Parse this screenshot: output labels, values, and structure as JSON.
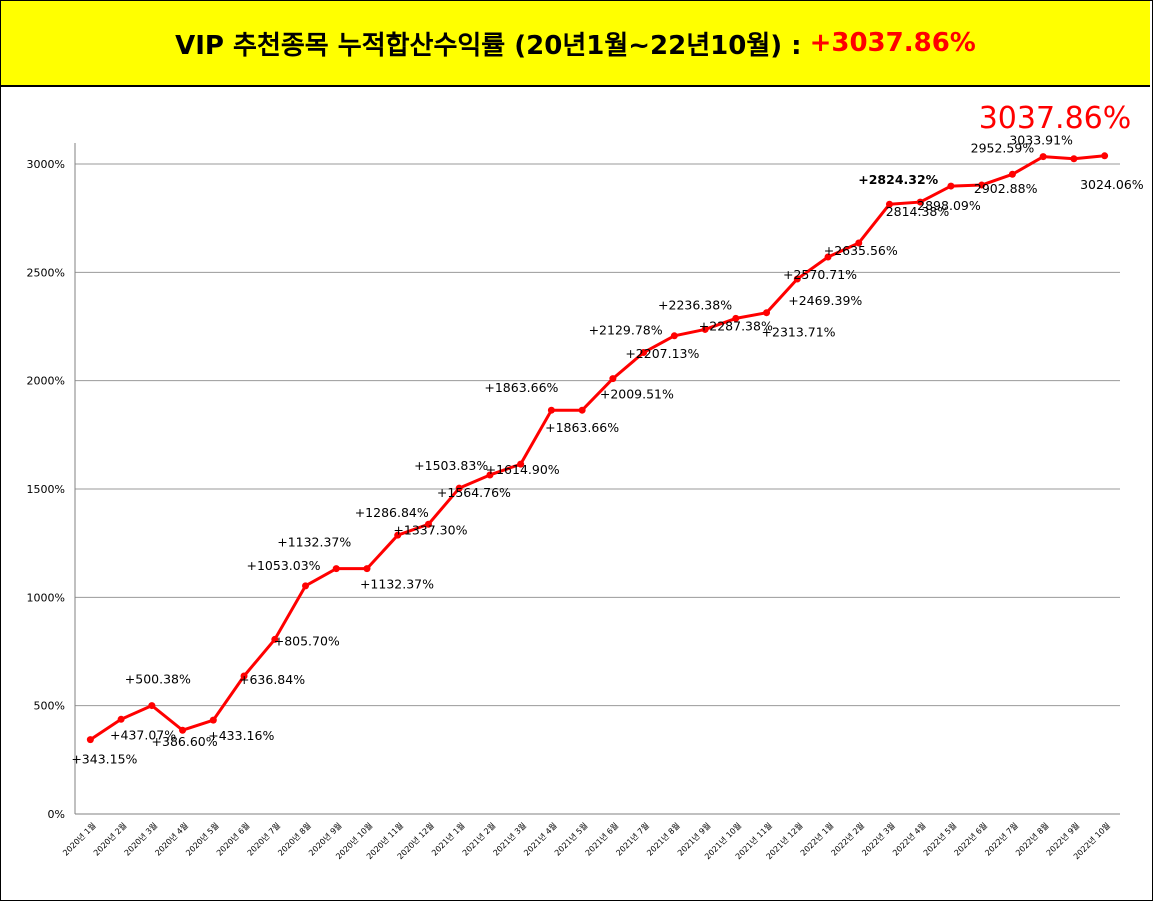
{
  "header": {
    "title": "VIP 추천종목 누적합산수익률 (20년1월~22년10월) :",
    "highlight": "+3037.86%"
  },
  "colors": {
    "banner_bg": "#ffff00",
    "line": "#ff0000",
    "highlight": "#ff0000"
  },
  "chart_data": {
    "type": "line",
    "categories": [
      "2020년 1월",
      "2020년 2월",
      "2020년 3월",
      "2020년 4월",
      "2020년 5월",
      "2020년 6월",
      "2020년 7월",
      "2020년 8월",
      "2020년 9월",
      "2020년 10월",
      "2020년 11월",
      "2020년 12월",
      "2021년 1월",
      "2021년 2월",
      "2021년 3월",
      "2021년 4월",
      "2021년 5월",
      "2021년 6월",
      "2021년 7월",
      "2021년 8월",
      "2021년 9월",
      "2021년 10월",
      "2021년 11월",
      "2021년 12월",
      "2022년 1월",
      "2022년 2월",
      "2022년 3월",
      "2022년 4월",
      "2022년 5월",
      "2022년 6월",
      "2022년 7월",
      "2022년 8월",
      "2022년 9월",
      "2022년 10월"
    ],
    "values": [
      343.15,
      437.07,
      500.38,
      386.6,
      433.16,
      636.84,
      805.7,
      1053.03,
      1132.37,
      1132.37,
      1286.84,
      1337.3,
      1503.83,
      1564.76,
      1614.9,
      1863.66,
      1863.66,
      2009.51,
      2129.78,
      2207.13,
      2236.38,
      2287.38,
      2313.71,
      2469.39,
      2570.71,
      2635.56,
      2814.38,
      2824.32,
      2898.09,
      2902.88,
      2952.59,
      3033.91,
      3024.06,
      3037.86
    ],
    "point_labels": [
      "+343.15%",
      "+437.07%",
      "+500.38%",
      "+386.60%",
      "+433.16%",
      "+636.84%",
      "+805.70%",
      "+1053.03%",
      "+1132.37%",
      "+1132.37%",
      "+1286.84%",
      "+1337.30%",
      "+1503.83%",
      "+1564.76%",
      "+1614.90%",
      "+1863.66%",
      "+1863.66%",
      "+2009.51%",
      "+2129.78%",
      "+2207.13%",
      "+2236.38%",
      "+2287.38%",
      "+2313.71%",
      "+2469.39%",
      "+2570.71%",
      "+2635.56%",
      "2814.38%",
      "+2824.32%",
      "2898.09%",
      "2902.88%",
      "2952.59%",
      "3033.91%",
      "3024.06%",
      "3037.86%"
    ],
    "final_label": "3037.86%",
    "y_ticks": [
      "0%",
      "500%",
      "1000%",
      "1500%",
      "2000%",
      "2500%",
      "3000%"
    ],
    "y_tick_values": [
      0,
      500,
      1000,
      1500,
      2000,
      2500,
      3000
    ],
    "ylim": [
      0,
      3100
    ],
    "grid": true,
    "legend": "none"
  }
}
